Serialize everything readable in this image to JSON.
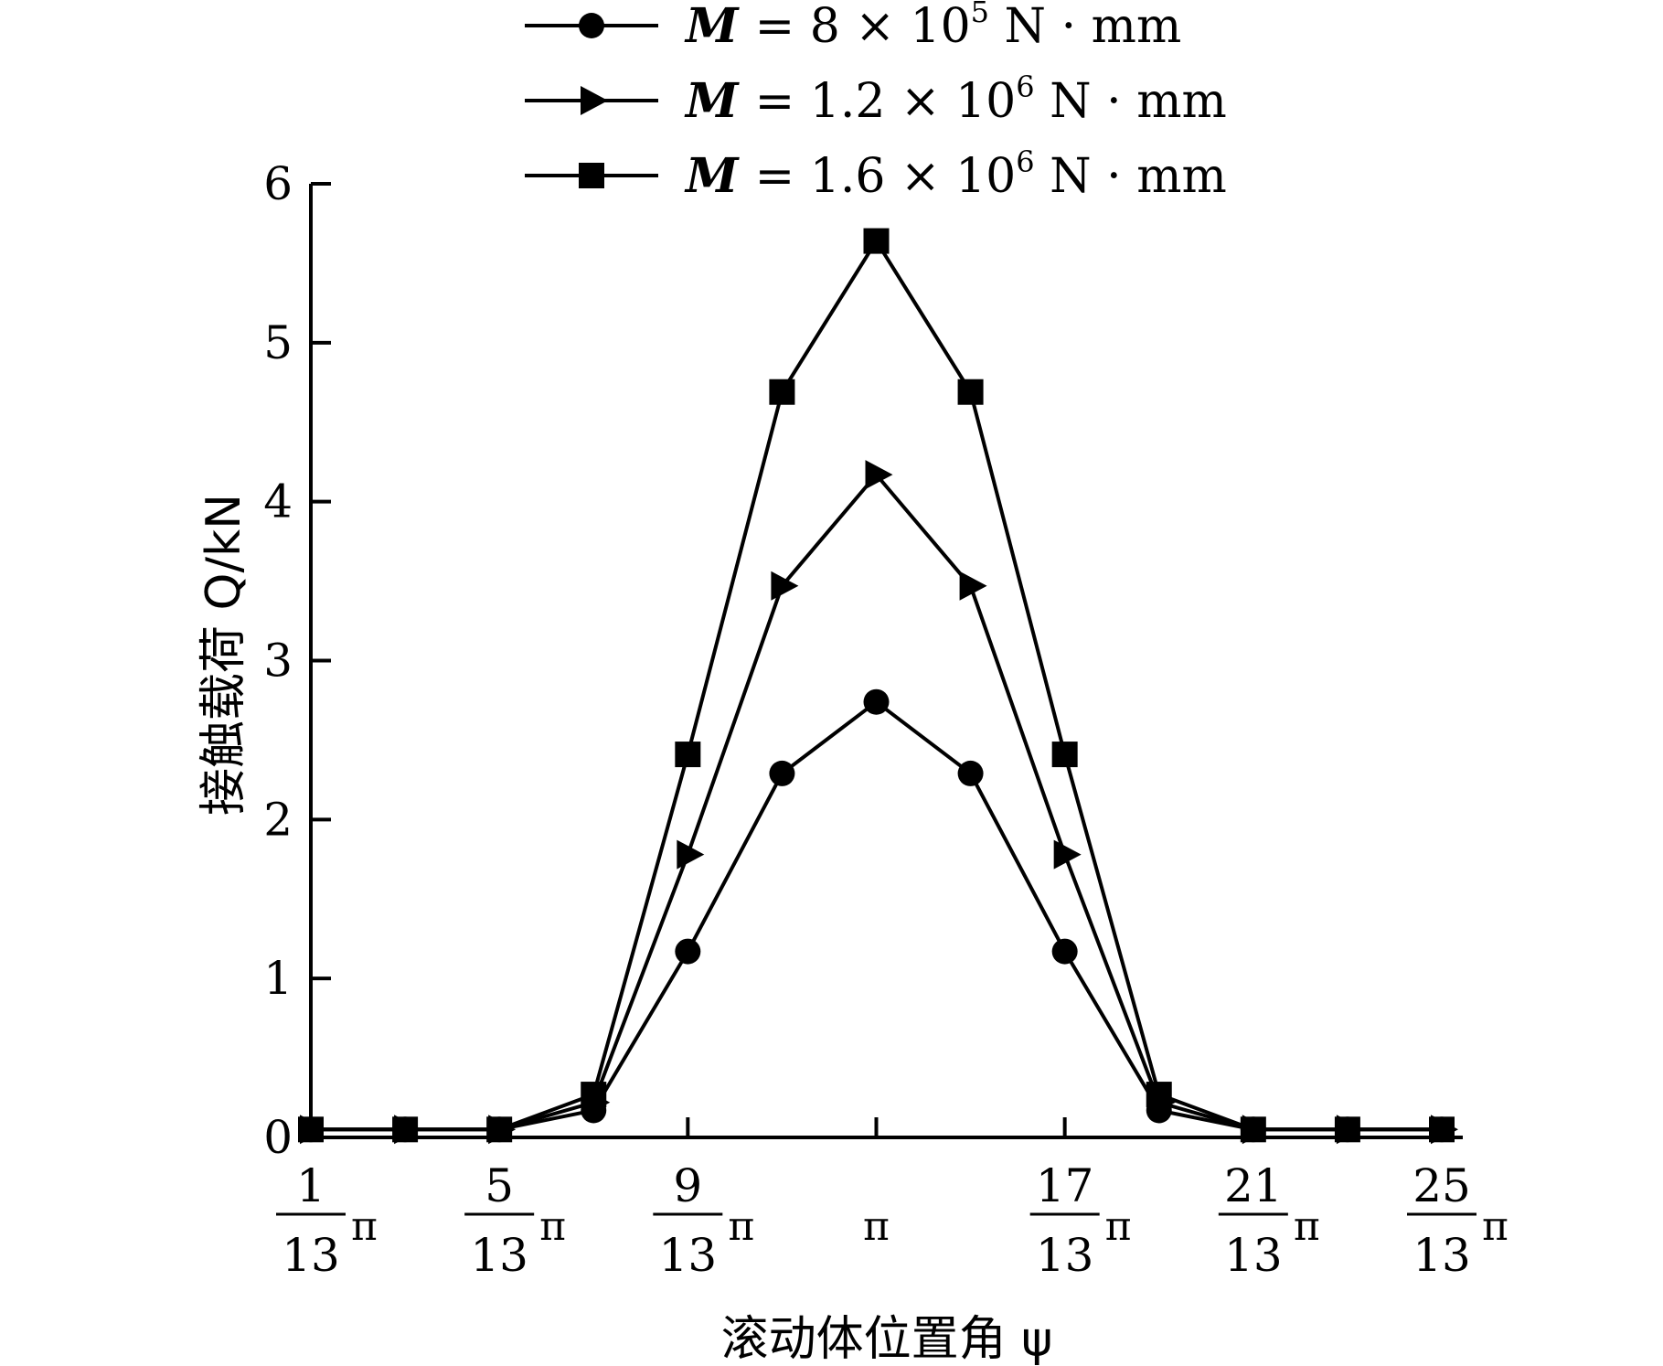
{
  "chart_data": {
    "type": "line",
    "xlabel": "滚动体位置角 ψ",
    "ylabel": "接触载荷 Q/kN",
    "ylim": [
      0,
      6
    ],
    "yticks": [
      0,
      1,
      2,
      3,
      4,
      5,
      6
    ],
    "x_unit_symbol": "π",
    "xticks": [
      {
        "value": 1,
        "num": "1",
        "den": "13",
        "pi": "π"
      },
      {
        "value": 5,
        "num": "5",
        "den": "13",
        "pi": "π"
      },
      {
        "value": 9,
        "num": "9",
        "den": "13",
        "pi": "π"
      },
      {
        "value": 13,
        "num": "",
        "den": "",
        "pi": "π"
      },
      {
        "value": 17,
        "num": "17",
        "den": "13",
        "pi": "π"
      },
      {
        "value": 21,
        "num": "21",
        "den": "13",
        "pi": "π"
      },
      {
        "value": 25,
        "num": "25",
        "den": "13",
        "pi": "π"
      }
    ],
    "x": [
      1,
      3,
      5,
      7,
      9,
      11,
      13,
      15,
      17,
      19,
      21,
      23,
      25
    ],
    "legend_position": "top",
    "series": [
      {
        "marker": "circle",
        "label_symbol": "M",
        "label_eq": "= 8 × 10",
        "label_exp": "5",
        "label_unit": "N · mm",
        "values": [
          0.05,
          0.05,
          0.05,
          0.17,
          1.17,
          2.29,
          2.74,
          2.29,
          1.17,
          0.17,
          0.05,
          0.05,
          0.05
        ]
      },
      {
        "marker": "triangle-right",
        "label_symbol": "M",
        "label_eq": "= 1.2 × 10",
        "label_exp": "6",
        "label_unit": "N · mm",
        "values": [
          0.05,
          0.05,
          0.05,
          0.22,
          1.78,
          3.47,
          4.17,
          3.47,
          1.78,
          0.22,
          0.05,
          0.05,
          0.05
        ]
      },
      {
        "marker": "square",
        "label_symbol": "M",
        "label_eq": "= 1.6 × 10",
        "label_exp": "6",
        "label_unit": "N · mm",
        "values": [
          0.05,
          0.05,
          0.05,
          0.27,
          2.41,
          4.69,
          5.64,
          4.69,
          2.41,
          0.27,
          0.05,
          0.05,
          0.05
        ]
      }
    ]
  }
}
